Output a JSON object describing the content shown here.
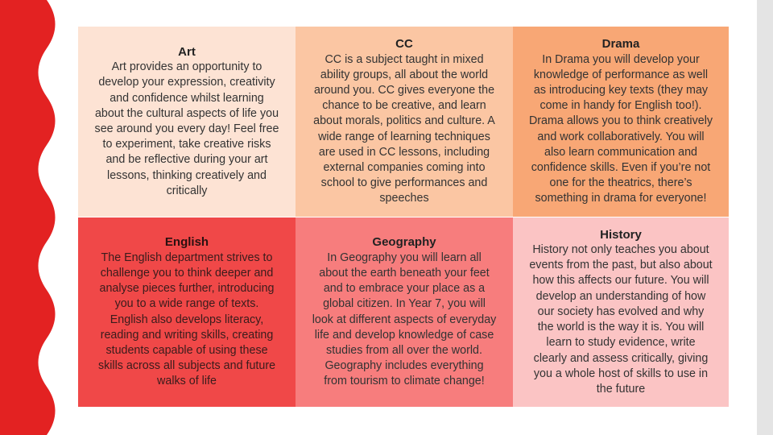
{
  "table": {
    "cells": [
      {
        "heading": "Art",
        "lines": [
          "Art provides an opportunity to",
          "develop your expression, creativity",
          "and confidence whilst learning",
          "about the cultural aspects of life you",
          "see around you every day! Feel free",
          "to experiment, take creative risks",
          "and be reflective during your art",
          "lessons, thinking creatively and",
          "critically"
        ]
      },
      {
        "heading": "CC",
        "lines": [
          "CC is a subject taught in mixed",
          "ability groups, all about the world",
          "around you. CC gives everyone the",
          "chance to be creative, and learn",
          "about morals, politics and culture. A",
          "wide range of learning techniques",
          "are used in CC lessons, including",
          "external companies coming into",
          "school to give performances and",
          "speeches"
        ]
      },
      {
        "heading": "Drama",
        "lines": [
          "In Drama you will develop your",
          "knowledge of performance as well",
          "as introducing key texts (they may",
          "come in handy for English too!).",
          "Drama allows you to think creatively",
          "and work collaboratively. You will",
          "also learn communication and",
          "confidence skills. Even if you’re not",
          "one for the theatrics, there’s",
          "something in drama for everyone!"
        ]
      },
      {
        "heading": "English",
        "lines": [
          "The English department strives to",
          "challenge you to think deeper and",
          "analyse pieces further, introducing",
          "you to a wide range of texts.",
          "English also develops literacy,",
          "reading and writing skills, creating",
          "students capable of using these",
          "skills across all subjects and future",
          "walks of life"
        ]
      },
      {
        "heading": "Geography",
        "lines": [
          "In Geography you will learn all",
          "about the earth beneath your feet",
          "and to embrace your place as a",
          "global citizen. In Year 7, you will",
          "look at different aspects of everyday",
          "life and develop knowledge of case",
          "studies from all over the world.",
          "Geography includes everything",
          "from tourism to climate change!"
        ]
      },
      {
        "heading": "History",
        "lines": [
          "History not only teaches you about",
          "events from the past, but also about",
          "how this affects our future. You will",
          "develop an understanding of how",
          "our society has evolved and why",
          "the world is the way it is. You will",
          "learn to study evidence, write",
          "clearly and assess critically, giving",
          "you a whole host of skills to use in",
          "the future"
        ]
      }
    ]
  }
}
